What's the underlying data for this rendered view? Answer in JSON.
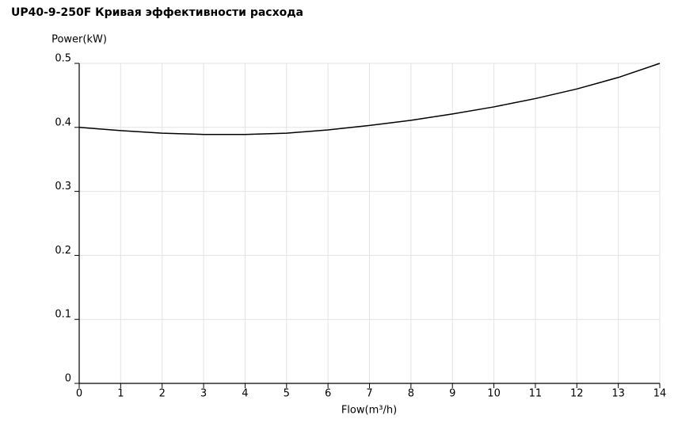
{
  "chart_data": {
    "type": "line",
    "title": "UP40-9-250F Кривая эффективности расхода",
    "x_label": "Flow(m³/h)",
    "y_label": "Power(kW)",
    "xlim": [
      0,
      14
    ],
    "xticks": [
      0,
      1,
      2,
      3,
      4,
      5,
      6,
      7,
      8,
      9,
      10,
      11,
      12,
      13,
      14
    ],
    "ylim": [
      0,
      0.5
    ],
    "yticks": [
      0,
      0.1,
      0.2,
      0.3,
      0.4,
      0.5
    ],
    "grid": true,
    "x": [
      0,
      1,
      2,
      3,
      4,
      5,
      6,
      7,
      8,
      9,
      10,
      11,
      12,
      13,
      14
    ],
    "series": [
      {
        "color": "#000000",
        "values": [
          0.4,
          0.395,
          0.391,
          0.389,
          0.389,
          0.391,
          0.396,
          0.403,
          0.411,
          0.421,
          0.432,
          0.445,
          0.46,
          0.478,
          0.5
        ]
      }
    ]
  }
}
